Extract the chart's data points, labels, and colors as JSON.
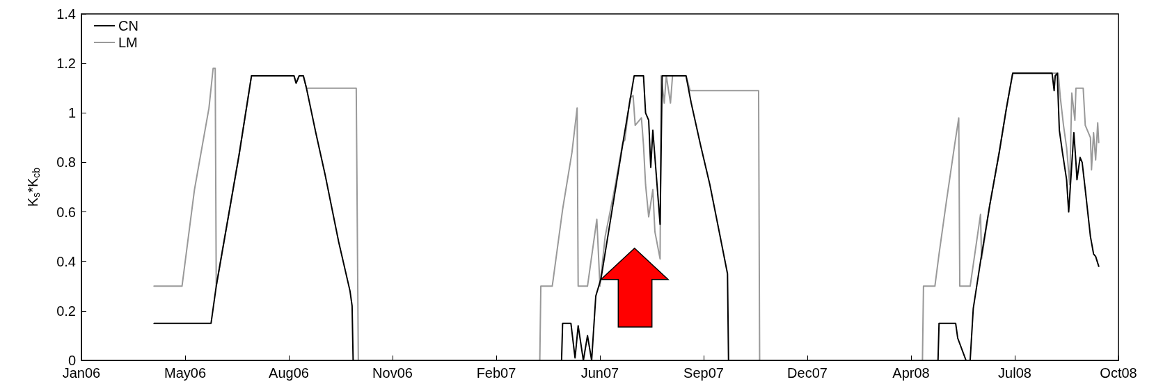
{
  "chart_data": {
    "type": "line",
    "ylabel": "K$_{s}$*K$_{cb}$",
    "xlim": [
      "2006-01-22",
      "2008-10-18"
    ],
    "xticks": [
      {
        "value": "2006-01-22",
        "label": "Jan06"
      },
      {
        "value": "2006-05-02",
        "label": "May06"
      },
      {
        "value": "2006-08-10",
        "label": "Aug06"
      },
      {
        "value": "2006-11-18",
        "label": "Nov06"
      },
      {
        "value": "2007-02-26",
        "label": "Feb07"
      },
      {
        "value": "2007-06-06",
        "label": "Jun07"
      },
      {
        "value": "2007-09-14",
        "label": "Sep07"
      },
      {
        "value": "2007-12-23",
        "label": "Dec07"
      },
      {
        "value": "2008-04-01",
        "label": "Apr08"
      },
      {
        "value": "2008-07-10",
        "label": "Jul08"
      },
      {
        "value": "2008-10-18",
        "label": "Oct08"
      }
    ],
    "ylim": [
      0,
      1.4
    ],
    "yticks": [
      0,
      0.2,
      0.4,
      0.6,
      0.8,
      1,
      1.2,
      1.4
    ],
    "legend": "top left",
    "series": [
      {
        "name": "CN",
        "color": "#000000",
        "x": [
          "2006-04-02",
          "2006-05-27",
          "2006-06-01",
          "2006-06-23",
          "2006-07-05",
          "2006-08-15",
          "2006-08-17",
          "2006-08-20",
          "2006-08-24",
          "2006-08-27",
          "2006-09-05",
          "2006-09-14",
          "2006-09-27",
          "2006-10-08",
          "2006-10-10",
          "2006-10-11",
          "2007-04-30",
          "2007-05-01",
          "2007-05-09",
          "2007-05-13",
          "2007-05-16",
          "2007-05-21",
          "2007-05-25",
          "2007-05-29",
          "2007-06-02",
          "2007-06-07",
          "2007-06-29",
          "2007-07-09",
          "2007-07-18",
          "2007-07-20",
          "2007-07-23",
          "2007-07-25",
          "2007-07-27",
          "2007-08-03",
          "2007-08-05",
          "2007-08-28",
          "2007-09-02",
          "2007-09-11",
          "2007-09-20",
          "2007-09-29",
          "2007-10-07",
          "2007-10-08",
          "2008-04-27",
          "2008-04-28",
          "2008-05-14",
          "2008-05-16",
          "2008-05-24",
          "2008-05-28",
          "2008-05-31",
          "2008-06-07",
          "2008-06-16",
          "2008-06-25",
          "2008-07-02",
          "2008-07-08",
          "2008-08-15",
          "2008-08-17",
          "2008-08-18",
          "2008-08-20",
          "2008-08-22",
          "2008-08-25",
          "2008-08-29",
          "2008-08-31",
          "2008-09-05",
          "2008-09-07",
          "2008-09-08",
          "2008-09-11",
          "2008-09-13",
          "2008-09-16",
          "2008-09-21",
          "2008-09-24",
          "2008-09-26",
          "2008-09-29"
        ],
        "values": [
          0.15,
          0.15,
          0.3,
          0.83,
          1.15,
          1.15,
          1.12,
          1.15,
          1.15,
          1.1,
          0.92,
          0.75,
          0.48,
          0.28,
          0.22,
          0,
          0,
          0.15,
          0.15,
          0.01,
          0.14,
          0,
          0.1,
          0,
          0.26,
          0.33,
          0.9,
          1.15,
          1.15,
          1,
          0.97,
          0.78,
          0.93,
          0.55,
          1.15,
          1.15,
          1.04,
          0.87,
          0.71,
          0.52,
          0.35,
          0,
          0,
          0.15,
          0.15,
          0.09,
          0,
          0,
          0.21,
          0.4,
          0.63,
          0.84,
          1.02,
          1.16,
          1.16,
          1.09,
          1.15,
          1.16,
          0.93,
          0.84,
          0.73,
          0.6,
          0.92,
          0.8,
          0.73,
          0.82,
          0.8,
          0.69,
          0.5,
          0.43,
          0.42,
          0.38
        ]
      },
      {
        "name": "LM",
        "color": "#999999",
        "x": [
          "2006-04-02",
          "2006-04-29",
          "2006-05-11",
          "2006-05-25",
          "2006-05-29",
          "2006-05-31",
          "2006-06-01",
          "2006-06-23",
          "2006-07-05",
          "2006-08-15",
          "2006-08-17",
          "2006-08-20",
          "2006-08-24",
          "2006-08-27",
          "2006-10-14",
          "2006-10-16",
          "2007-04-09",
          "2007-04-10",
          "2007-04-21",
          "2007-04-22",
          "2007-05-01",
          "2007-05-10",
          "2007-05-15",
          "2007-05-16",
          "2007-05-25",
          "2007-06-03",
          "2007-06-06",
          "2007-06-11",
          "2007-06-20",
          "2007-06-28",
          "2007-06-30",
          "2007-07-05",
          "2007-07-08",
          "2007-07-10",
          "2007-07-16",
          "2007-07-18",
          "2007-07-20",
          "2007-07-23",
          "2007-07-27",
          "2007-07-29",
          "2007-08-03",
          "2007-08-04",
          "2007-08-07",
          "2007-08-09",
          "2007-08-13",
          "2007-08-15",
          "2007-08-28",
          "2007-09-01",
          "2007-11-06",
          "2007-11-07",
          "2008-04-12",
          "2008-04-13",
          "2008-04-24",
          "2008-04-28",
          "2008-05-05",
          "2008-05-13",
          "2008-05-17",
          "2008-05-18",
          "2008-05-28",
          "2008-06-07",
          "2008-06-08",
          "2008-06-16",
          "2008-06-25",
          "2008-07-02",
          "2008-07-08",
          "2008-08-21",
          "2008-08-23",
          "2008-08-26",
          "2008-08-29",
          "2008-09-01",
          "2008-09-03",
          "2008-09-06",
          "2008-09-07",
          "2008-09-09",
          "2008-09-14",
          "2008-09-16",
          "2008-09-21",
          "2008-09-22",
          "2008-09-24",
          "2008-09-26",
          "2008-09-28",
          "2008-09-29"
        ],
        "values": [
          0.3,
          0.3,
          0.69,
          1.02,
          1.18,
          1.18,
          0.3,
          0.83,
          1.15,
          1.15,
          1.12,
          1.15,
          1.15,
          1.1,
          1.1,
          0,
          0,
          0.3,
          0.3,
          0.33,
          0.61,
          0.84,
          1.02,
          0.3,
          0.3,
          0.57,
          0.3,
          0.5,
          0.69,
          0.88,
          0.89,
          1.06,
          1.07,
          0.95,
          0.98,
          0.87,
          0.71,
          0.58,
          0.69,
          0.52,
          0.41,
          1.15,
          1.04,
          1.15,
          1.04,
          1.15,
          1.15,
          1.09,
          1.09,
          0,
          0,
          0.3,
          0.3,
          0.43,
          0.64,
          0.87,
          0.98,
          0.3,
          0.3,
          0.59,
          0.41,
          0.63,
          0.84,
          1.02,
          1.16,
          1.16,
          1.06,
          0.95,
          0.86,
          0.71,
          1.08,
          0.97,
          1.1,
          1.1,
          1.1,
          0.95,
          0.9,
          0.77,
          0.92,
          0.81,
          0.96,
          0.88
        ]
      }
    ]
  }
}
